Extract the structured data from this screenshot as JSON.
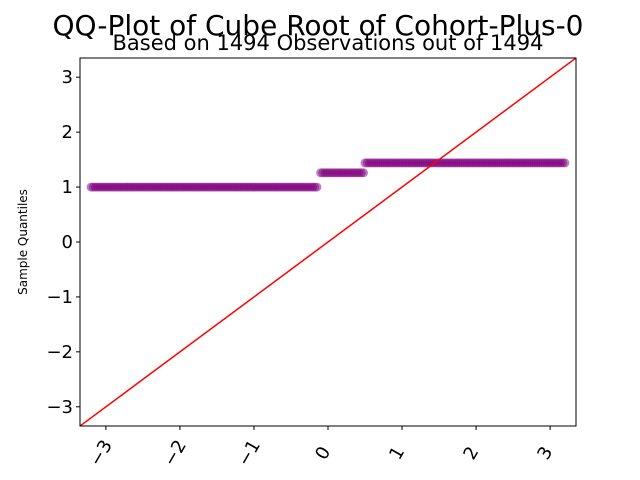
{
  "chart_data": {
    "type": "scatter",
    "title": "QQ-Plot of Cube Root of Cohort-Plus-0",
    "subtitle": "Based on 1494 Observations out of 1494",
    "xlabel": "",
    "ylabel": "Sample Quantiles",
    "xlim": [
      -3.35,
      3.35
    ],
    "ylim": [
      -3.35,
      3.35
    ],
    "xticks": [
      -3,
      -2,
      -1,
      0,
      1,
      2,
      3
    ],
    "yticks": [
      -3,
      -2,
      -1,
      0,
      1,
      2,
      3
    ],
    "xtick_labels": [
      "−3",
      "−2",
      "−1",
      "0",
      "1",
      "2",
      "3"
    ],
    "ytick_labels": [
      "−3",
      "−2",
      "−1",
      "0",
      "1",
      "2",
      "3"
    ],
    "grid": false,
    "point_color": "#800080",
    "line_color": "#ff0000",
    "reference_line": {
      "slope": 1,
      "intercept": 0
    },
    "segments": [
      {
        "x_start": -3.2,
        "x_end": -0.15,
        "y": 1.0
      },
      {
        "x_start": -0.1,
        "x_end": 0.48,
        "y": 1.26
      },
      {
        "x_start": 0.5,
        "x_end": 3.2,
        "y": 1.44
      }
    ]
  }
}
